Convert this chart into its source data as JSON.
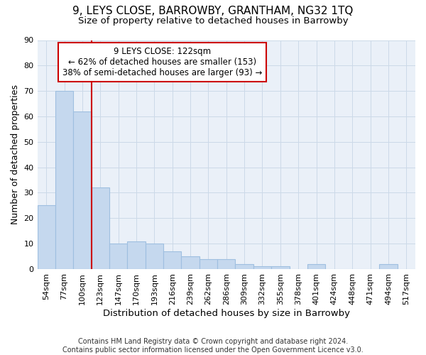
{
  "title": "9, LEYS CLOSE, BARROWBY, GRANTHAM, NG32 1TQ",
  "subtitle": "Size of property relative to detached houses in Barrowby",
  "xlabel": "Distribution of detached houses by size in Barrowby",
  "ylabel": "Number of detached properties",
  "categories": [
    "54sqm",
    "77sqm",
    "100sqm",
    "123sqm",
    "147sqm",
    "170sqm",
    "193sqm",
    "216sqm",
    "239sqm",
    "262sqm",
    "286sqm",
    "309sqm",
    "332sqm",
    "355sqm",
    "378sqm",
    "401sqm",
    "424sqm",
    "448sqm",
    "471sqm",
    "494sqm",
    "517sqm"
  ],
  "values": [
    25,
    70,
    62,
    32,
    10,
    11,
    10,
    7,
    5,
    4,
    4,
    2,
    1,
    1,
    0,
    2,
    0,
    0,
    0,
    2,
    0
  ],
  "bar_color": "#c5d8ee",
  "bar_edge_color": "#9fbfe0",
  "vline_x": 2.5,
  "vline_color": "#cc0000",
  "annotation_text": "9 LEYS CLOSE: 122sqm\n← 62% of detached houses are smaller (153)\n38% of semi-detached houses are larger (93) →",
  "annotation_box_color": "#cc0000",
  "ylim": [
    0,
    90
  ],
  "yticks": [
    0,
    10,
    20,
    30,
    40,
    50,
    60,
    70,
    80,
    90
  ],
  "grid_color": "#ccd9e8",
  "background_color": "#eaf0f8",
  "footer": "Contains HM Land Registry data © Crown copyright and database right 2024.\nContains public sector information licensed under the Open Government Licence v3.0.",
  "title_fontsize": 11,
  "subtitle_fontsize": 9.5,
  "xlabel_fontsize": 9.5,
  "ylabel_fontsize": 9,
  "tick_fontsize": 8,
  "annotation_fontsize": 8.5,
  "footer_fontsize": 7
}
